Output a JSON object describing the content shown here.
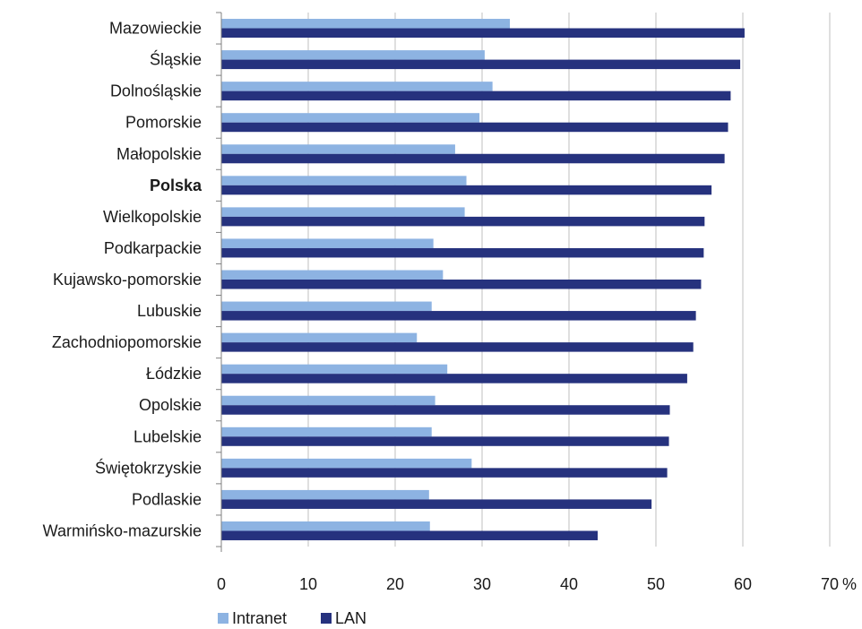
{
  "chart_data": {
    "type": "bar",
    "orientation": "horizontal",
    "categories": [
      "Mazowieckie",
      "Śląskie",
      "Dolnośląskie",
      "Pomorskie",
      "Małopolskie",
      "Polska",
      "Wielkopolskie",
      "Podkarpackie",
      "Kujawsko-pomorskie",
      "Lubuskie",
      "Zachodniopomorskie",
      "Łódzkie",
      "Opolskie",
      "Lubelskie",
      "Świętokrzyskie",
      "Podlaskie",
      "Warmińsko-mazurskie"
    ],
    "highlight_category": "Polska",
    "series": [
      {
        "name": "Intranet",
        "color": "#8DB3E2",
        "values": [
          33.2,
          30.3,
          31.2,
          29.7,
          26.9,
          28.2,
          28.0,
          24.4,
          25.5,
          24.2,
          22.5,
          26.0,
          24.6,
          24.2,
          28.8,
          23.9,
          24.0
        ]
      },
      {
        "name": "LAN",
        "color": "#26327E",
        "values": [
          60.2,
          59.7,
          58.6,
          58.3,
          57.9,
          56.4,
          55.6,
          55.5,
          55.2,
          54.6,
          54.3,
          53.6,
          51.6,
          51.5,
          51.3,
          49.5,
          43.3
        ]
      }
    ],
    "xlim": [
      0,
      70
    ],
    "xticks": [
      "0",
      "10",
      "20",
      "30",
      "40",
      "50",
      "60",
      "70"
    ],
    "unit": "%",
    "grid": "vertical",
    "legend_position": "bottom-left"
  }
}
